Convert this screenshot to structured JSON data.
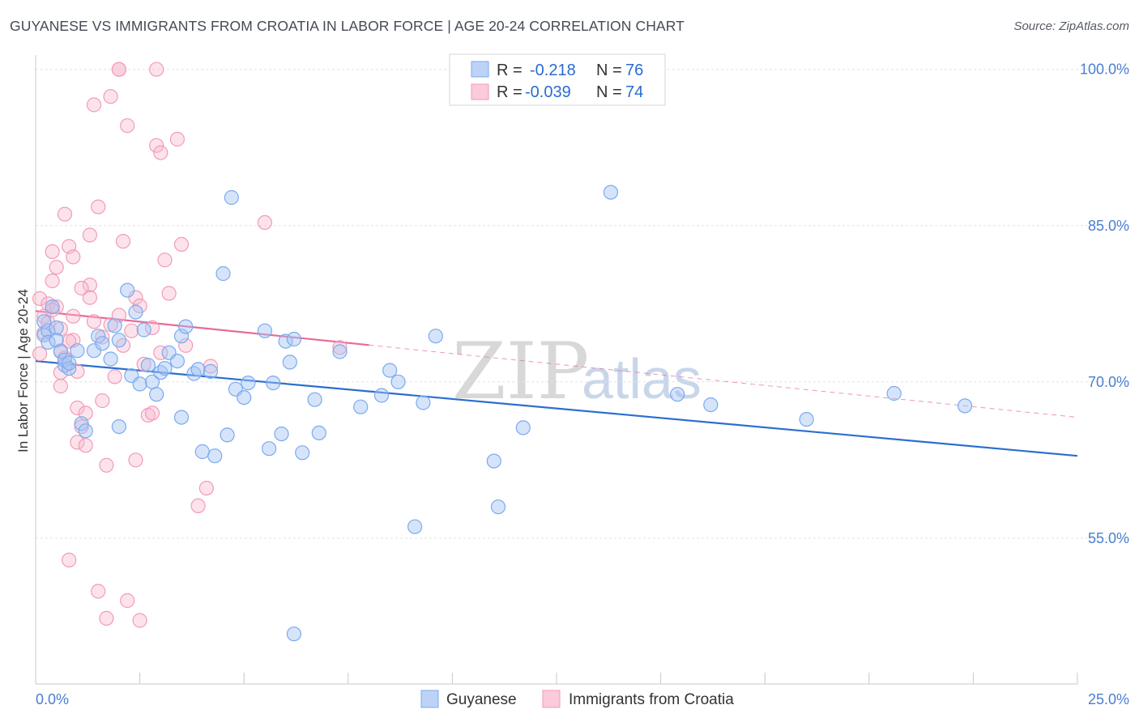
{
  "title": "GUYANESE VS IMMIGRANTS FROM CROATIA IN LABOR FORCE | AGE 20-24 CORRELATION CHART",
  "source": "Source: ZipAtlas.com",
  "watermark": {
    "zip": "ZIP",
    "atlas": "atlas"
  },
  "legend_top": [
    {
      "r_label": "R =",
      "r_value": "-0.218",
      "n_label": "N =",
      "n_value": "76"
    },
    {
      "r_label": "R =",
      "r_value": "-0.039",
      "n_label": "N =",
      "n_value": "74"
    }
  ],
  "chart_data": {
    "type": "scatter",
    "title": "GUYANESE VS IMMIGRANTS FROM CROATIA IN LABOR FORCE | AGE 20-24 CORRELATION CHART",
    "xlabel": "",
    "ylabel": "In Labor Force | Age 20-24",
    "xlim": [
      0,
      25
    ],
    "ylim": [
      41,
      102
    ],
    "x_tick_labels": [
      "0.0%",
      "25.0%"
    ],
    "y_ticks": [
      55,
      70,
      85,
      100
    ],
    "y_tick_labels": [
      "55.0%",
      "70.0%",
      "85.0%",
      "100.0%"
    ],
    "grid": true,
    "legend_placement": "top-center and bottom",
    "colors": {
      "Guyanese": "#7aaaf0",
      "Immigrants from Croatia": "#f39ab9",
      "Guyanese_line": "#2a6fd0",
      "Croatia_line": "#e86a97"
    },
    "series": [
      {
        "name": "Guyanese",
        "r": -0.218,
        "n": 76,
        "trend": {
          "x": [
            0,
            25
          ],
          "y": [
            72.0,
            62.9
          ]
        },
        "points": [
          [
            0.2,
            74.5
          ],
          [
            0.2,
            75.8
          ],
          [
            0.3,
            74.9
          ],
          [
            0.3,
            73.8
          ],
          [
            0.4,
            77.2
          ],
          [
            0.5,
            75.2
          ],
          [
            0.5,
            74.0
          ],
          [
            0.6,
            72.9
          ],
          [
            0.7,
            71.6
          ],
          [
            0.7,
            72.1
          ],
          [
            0.8,
            71.3
          ],
          [
            0.8,
            71.8
          ],
          [
            1.0,
            73.0
          ],
          [
            1.1,
            66.0
          ],
          [
            1.2,
            65.3
          ],
          [
            1.4,
            73.0
          ],
          [
            1.5,
            74.4
          ],
          [
            1.6,
            73.7
          ],
          [
            1.8,
            72.2
          ],
          [
            1.9,
            75.4
          ],
          [
            2.0,
            74.0
          ],
          [
            2.0,
            65.7
          ],
          [
            2.2,
            78.8
          ],
          [
            2.3,
            70.6
          ],
          [
            2.4,
            76.7
          ],
          [
            2.5,
            69.8
          ],
          [
            2.6,
            75.0
          ],
          [
            2.7,
            71.6
          ],
          [
            2.8,
            70.0
          ],
          [
            2.9,
            68.8
          ],
          [
            3.0,
            70.9
          ],
          [
            3.1,
            71.3
          ],
          [
            3.2,
            72.8
          ],
          [
            3.4,
            72.0
          ],
          [
            3.5,
            74.4
          ],
          [
            3.5,
            66.6
          ],
          [
            3.6,
            75.3
          ],
          [
            3.8,
            70.8
          ],
          [
            3.9,
            71.2
          ],
          [
            4.0,
            63.3
          ],
          [
            4.2,
            71.0
          ],
          [
            4.3,
            62.9
          ],
          [
            4.5,
            80.4
          ],
          [
            4.6,
            64.9
          ],
          [
            4.7,
            87.7
          ],
          [
            4.8,
            69.3
          ],
          [
            5.0,
            68.5
          ],
          [
            5.1,
            69.9
          ],
          [
            5.5,
            74.9
          ],
          [
            5.6,
            63.6
          ],
          [
            5.7,
            69.9
          ],
          [
            5.9,
            65.0
          ],
          [
            6.0,
            73.9
          ],
          [
            6.1,
            71.9
          ],
          [
            6.2,
            74.1
          ],
          [
            6.4,
            63.2
          ],
          [
            6.7,
            68.3
          ],
          [
            6.8,
            65.1
          ],
          [
            7.3,
            72.9
          ],
          [
            7.8,
            67.6
          ],
          [
            8.3,
            68.7
          ],
          [
            8.5,
            71.1
          ],
          [
            8.7,
            70.0
          ],
          [
            9.1,
            56.1
          ],
          [
            9.3,
            68.0
          ],
          [
            9.6,
            74.4
          ],
          [
            11.0,
            62.4
          ],
          [
            11.1,
            58.0
          ],
          [
            11.7,
            65.6
          ],
          [
            13.8,
            88.2
          ],
          [
            15.4,
            68.8
          ],
          [
            16.2,
            67.8
          ],
          [
            18.5,
            66.4
          ],
          [
            20.6,
            68.9
          ],
          [
            22.3,
            67.7
          ],
          [
            6.2,
            45.8
          ]
        ]
      },
      {
        "name": "Immigrants from Croatia",
        "r": -0.039,
        "n": 74,
        "trend": {
          "x": [
            0,
            25
          ],
          "y": [
            76.8,
            66.6
          ]
        },
        "points": [
          [
            0.1,
            72.7
          ],
          [
            0.1,
            78.0
          ],
          [
            0.2,
            76.3
          ],
          [
            0.2,
            74.7
          ],
          [
            0.3,
            77.5
          ],
          [
            0.3,
            75.7
          ],
          [
            0.4,
            79.7
          ],
          [
            0.4,
            82.5
          ],
          [
            0.5,
            81.0
          ],
          [
            0.5,
            77.2
          ],
          [
            0.6,
            75.1
          ],
          [
            0.6,
            69.6
          ],
          [
            0.6,
            73.0
          ],
          [
            0.7,
            72.3
          ],
          [
            0.7,
            86.1
          ],
          [
            0.8,
            83.0
          ],
          [
            0.9,
            82.0
          ],
          [
            0.9,
            76.3
          ],
          [
            1.0,
            71.0
          ],
          [
            1.0,
            67.5
          ],
          [
            1.0,
            64.2
          ],
          [
            1.1,
            65.7
          ],
          [
            1.2,
            67.0
          ],
          [
            1.2,
            63.9
          ],
          [
            1.3,
            84.1
          ],
          [
            1.3,
            79.3
          ],
          [
            1.4,
            96.6
          ],
          [
            1.4,
            75.8
          ],
          [
            1.5,
            86.8
          ],
          [
            1.6,
            68.2
          ],
          [
            1.7,
            62.0
          ],
          [
            1.8,
            75.5
          ],
          [
            1.8,
            97.4
          ],
          [
            1.9,
            70.5
          ],
          [
            2.0,
            100.0
          ],
          [
            2.0,
            100.0
          ],
          [
            2.1,
            83.5
          ],
          [
            2.1,
            73.5
          ],
          [
            2.2,
            94.6
          ],
          [
            2.3,
            74.9
          ],
          [
            2.4,
            62.5
          ],
          [
            2.4,
            78.1
          ],
          [
            2.5,
            77.3
          ],
          [
            2.6,
            71.7
          ],
          [
            2.7,
            66.8
          ],
          [
            2.8,
            67.0
          ],
          [
            2.9,
            100.0
          ],
          [
            2.9,
            92.7
          ],
          [
            3.0,
            92.0
          ],
          [
            3.1,
            81.7
          ],
          [
            3.2,
            78.5
          ],
          [
            3.4,
            93.3
          ],
          [
            3.5,
            83.2
          ],
          [
            3.6,
            73.5
          ],
          [
            3.9,
            58.1
          ],
          [
            4.1,
            59.8
          ],
          [
            4.2,
            71.5
          ],
          [
            5.5,
            85.3
          ],
          [
            7.3,
            73.3
          ],
          [
            0.8,
            52.9
          ],
          [
            1.5,
            49.9
          ],
          [
            1.7,
            47.3
          ],
          [
            2.2,
            49.0
          ],
          [
            2.5,
            47.1
          ],
          [
            0.6,
            70.9
          ],
          [
            1.1,
            79.0
          ],
          [
            2.0,
            76.4
          ],
          [
            1.6,
            74.3
          ],
          [
            0.9,
            74.0
          ],
          [
            3.0,
            72.8
          ],
          [
            0.4,
            76.9
          ],
          [
            1.3,
            78.1
          ],
          [
            0.8,
            73.9
          ],
          [
            2.8,
            75.2
          ]
        ]
      }
    ]
  },
  "bottom_legend": [
    "Guyanese",
    "Immigrants from Croatia"
  ]
}
